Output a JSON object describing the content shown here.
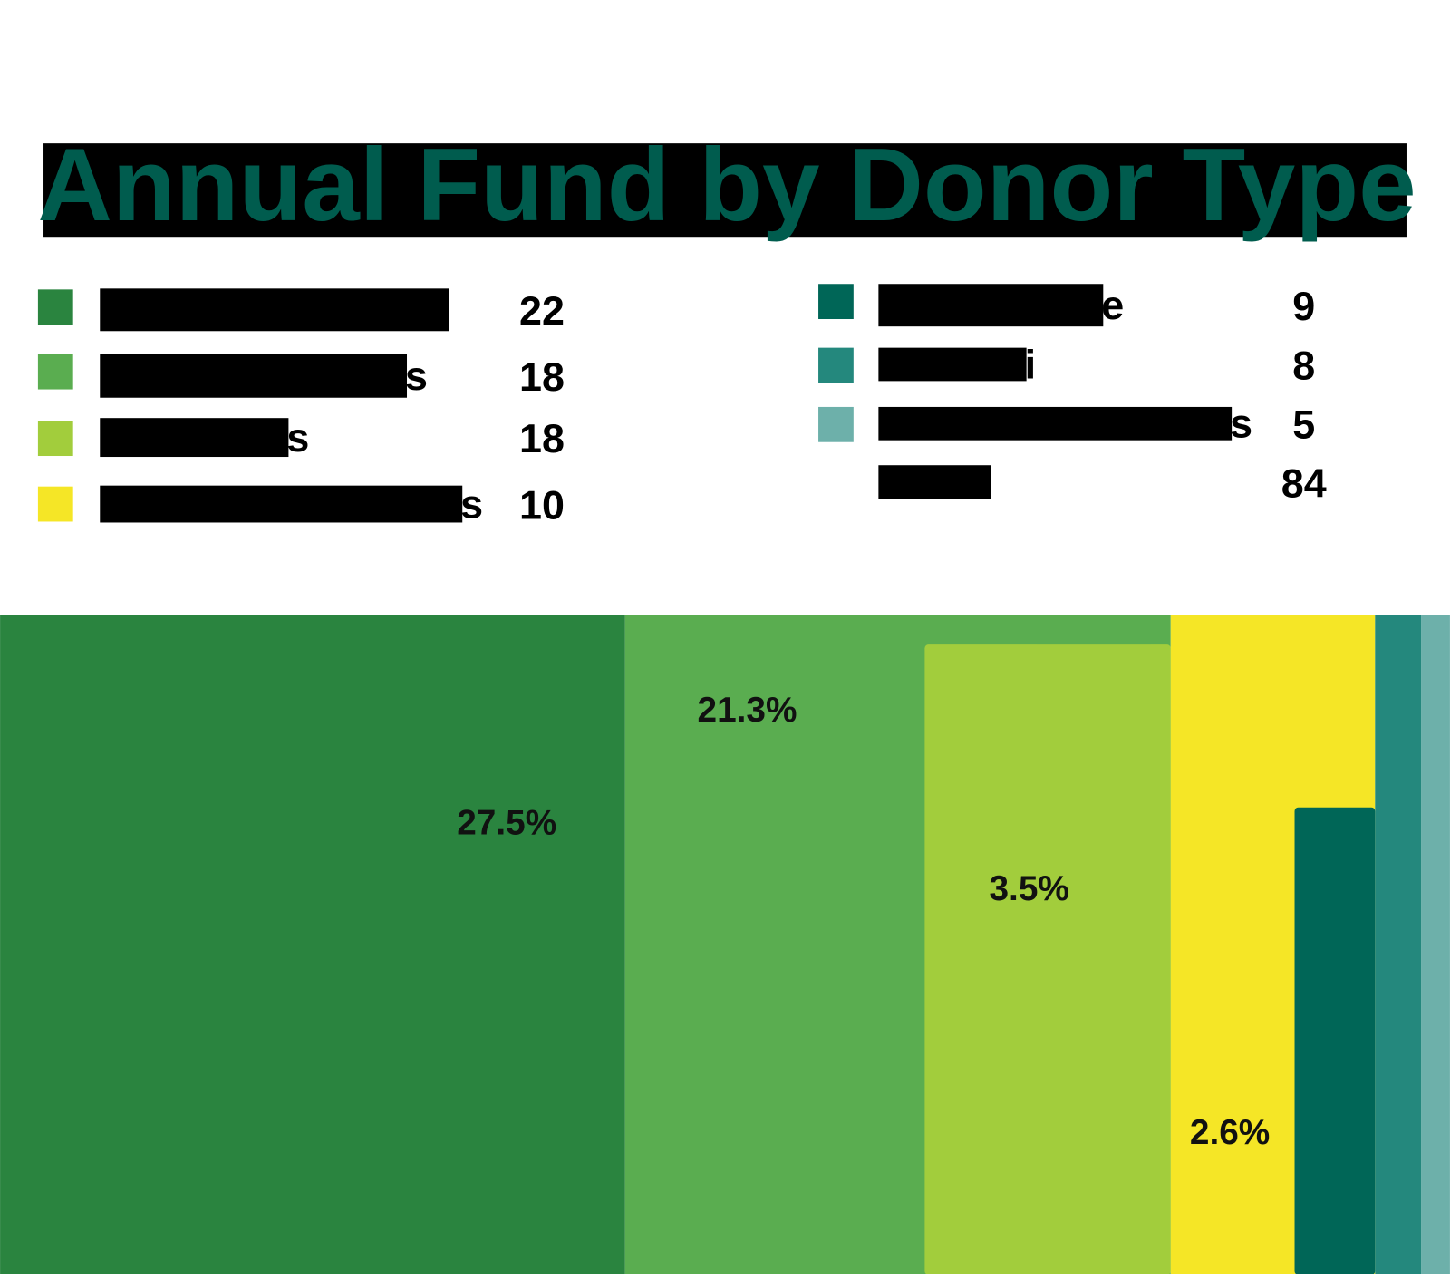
{
  "title": "Annual Fund by Donor Type",
  "legend": {
    "left": [
      {
        "fragment": "",
        "value": 22
      },
      {
        "fragment": "s",
        "value": 18
      },
      {
        "fragment": "s",
        "value": 18
      },
      {
        "fragment": "s",
        "value": 10
      }
    ],
    "right": [
      {
        "fragment": "e",
        "value": 9
      },
      {
        "fragment": "i",
        "value": 8
      },
      {
        "fragment": "s",
        "value": 5
      },
      {
        "fragment": "",
        "value": 84
      }
    ]
  },
  "blocks": [
    "27.5%",
    "21.3%",
    "3.5%",
    "2.6%"
  ]
}
